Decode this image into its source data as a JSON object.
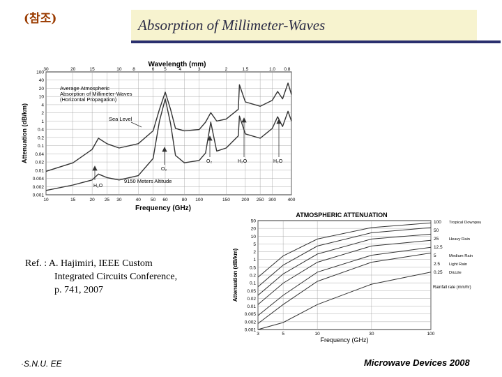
{
  "header": {
    "tag": "(참조)",
    "title": "Absorption of Millimeter-Waves"
  },
  "reference": {
    "line1": "Ref. : A. Hajimiri, IEEE Custom",
    "line2": "Integrated Circuits Conference,",
    "line3": "p. 741, 2007"
  },
  "footer": {
    "left": "·S.N.U. EE",
    "right": "Microwave Devices 2008"
  },
  "colors": {
    "title_bar": "#f7f3cf",
    "title_rule": "#2a2f6e",
    "curve": "#333333",
    "grid": "#888888"
  },
  "chart_data": [
    {
      "type": "line",
      "title": "",
      "top_axis_label": "Wavelength (mm)",
      "top_ticks": [
        "30",
        "20",
        "15",
        "10",
        "8",
        "6",
        "5",
        "4",
        "3",
        "2",
        "1.5",
        "1.0",
        "0.8"
      ],
      "xlabel": "Frequency (GHz)",
      "ylabel": "Attenuation (dB/km)",
      "x_ticks": [
        "10",
        "15",
        "20",
        "25",
        "30",
        "40",
        "50",
        "60",
        "80",
        "100",
        "150",
        "200",
        "250",
        "300",
        "400"
      ],
      "y_ticks": [
        "100",
        "40",
        "20",
        "10",
        "4",
        "2",
        "1",
        "0.4",
        "0.2",
        "0.1",
        "0.04",
        "0.02",
        "0.01",
        "0.004",
        "0.002",
        "0.001"
      ],
      "xlim": [
        10,
        400
      ],
      "ylim": [
        0.001,
        100
      ],
      "annotations": {
        "legend_1": "Average Atmospheric",
        "legend_2": "Absorption of Millimeter-Waves",
        "legend_3": "(Horizontal Propagation)",
        "sea_level": "Sea Level",
        "altitude": "9150 Meters Altitude",
        "h2o_low": "H₂O",
        "o2": "O₂",
        "o2_high": "O₂",
        "h2o_mid": "H₂O",
        "h2o_high": "H₂O"
      },
      "series": [
        {
          "name": "Sea Level",
          "x": [
            10,
            15,
            20,
            22,
            25,
            30,
            40,
            50,
            55,
            60,
            65,
            70,
            80,
            100,
            110,
            119,
            130,
            150,
            180,
            183,
            200,
            250,
            300,
            325,
            350,
            380,
            400
          ],
          "y": [
            0.009,
            0.02,
            0.07,
            0.2,
            0.12,
            0.08,
            0.12,
            0.4,
            3,
            15,
            3,
            0.5,
            0.4,
            0.45,
            0.9,
            2.2,
            1,
            1.2,
            3,
            30,
            6,
            4,
            7,
            16,
            8,
            35,
            12
          ]
        },
        {
          "name": "9150 Meters Altitude",
          "x": [
            10,
            15,
            20,
            22,
            25,
            30,
            40,
            50,
            55,
            60,
            65,
            70,
            80,
            100,
            110,
            119,
            130,
            150,
            180,
            183,
            200,
            250,
            300,
            325,
            350,
            380,
            400
          ],
          "y": [
            0.0015,
            0.0025,
            0.004,
            0.007,
            0.005,
            0.004,
            0.006,
            0.03,
            1,
            8,
            0.8,
            0.04,
            0.02,
            0.025,
            0.05,
            0.9,
            0.06,
            0.08,
            0.25,
            1.6,
            0.3,
            0.2,
            0.5,
            1.5,
            0.6,
            2.5,
            1.0
          ]
        }
      ]
    },
    {
      "type": "line",
      "title": "ATMOSPHERIC ATTENUATION",
      "xlabel": "Frequency (GHz)",
      "ylabel": "Attenuation (dB/km)",
      "x_ticks": [
        "3",
        "5",
        "10",
        "30",
        "100"
      ],
      "y_ticks": [
        "50",
        "20",
        "10",
        "5",
        "2",
        "1",
        "0.5",
        "0.2",
        "0.1",
        "0.05",
        "0.02",
        "0.01",
        "0.005",
        "0.002",
        "0.001"
      ],
      "xlim": [
        3,
        100
      ],
      "ylim": [
        0.001,
        50
      ],
      "rain_rate_label": "Rainfall rate (mm/hr)",
      "series": [
        {
          "name": "Tropical Downpour",
          "rate": "100",
          "x": [
            3,
            5,
            10,
            30,
            100
          ],
          "y": [
            0.18,
            1.5,
            8,
            25,
            40
          ]
        },
        {
          "name": "",
          "rate": "50",
          "x": [
            3,
            5,
            10,
            30,
            100
          ],
          "y": [
            0.07,
            0.6,
            4,
            15,
            25
          ]
        },
        {
          "name": "Heavy Rain",
          "rate": "25",
          "x": [
            3,
            5,
            10,
            30,
            100
          ],
          "y": [
            0.03,
            0.25,
            1.8,
            8,
            13
          ]
        },
        {
          "name": "",
          "rate": "12.5",
          "x": [
            3,
            5,
            10,
            30,
            100
          ],
          "y": [
            0.012,
            0.1,
            0.8,
            4,
            7
          ]
        },
        {
          "name": "Medium Rain",
          "rate": "5",
          "x": [
            3,
            5,
            10,
            30,
            100
          ],
          "y": [
            0.004,
            0.03,
            0.3,
            1.6,
            3.5
          ]
        },
        {
          "name": "Light Rain",
          "rate": "2.5",
          "x": [
            3,
            5,
            10,
            30,
            100
          ],
          "y": [
            0.0018,
            0.012,
            0.12,
            0.8,
            2
          ]
        },
        {
          "name": "Drizzle",
          "rate": "0.25",
          "x": [
            3,
            5,
            10,
            30,
            100
          ],
          "y": [
            0.001,
            0.002,
            0.012,
            0.09,
            0.3
          ]
        }
      ]
    }
  ]
}
